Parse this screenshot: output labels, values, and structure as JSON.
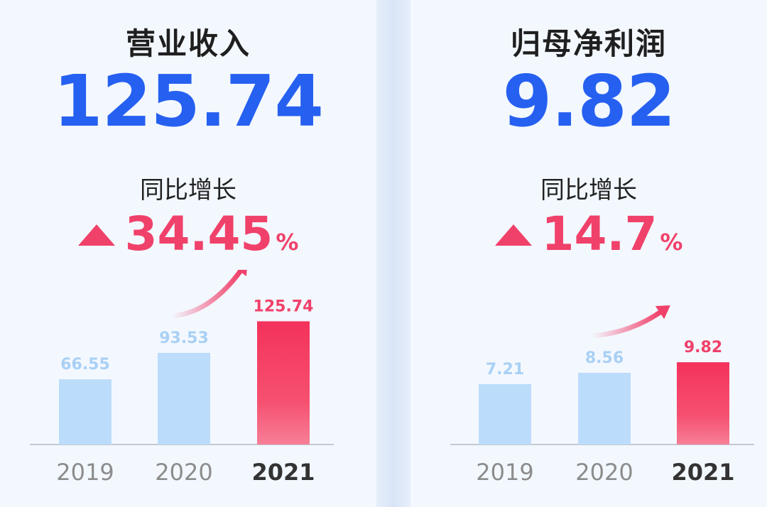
{
  "panels": [
    {
      "title": "营业收入",
      "value": "125.74",
      "yoy_label": "同比增长",
      "yoy_value": "34.45",
      "yoy_unit": "%"
    },
    {
      "title": "归母净利润",
      "value": "9.82",
      "yoy_label": "同比增长",
      "yoy_value": "14.7",
      "yoy_unit": "%"
    }
  ],
  "colors": {
    "accent_blue": "#2660f0",
    "accent_red": "#f0416a",
    "bar_light": "#bcdcfb",
    "label_light": "#a9d0f5"
  },
  "chart_data": [
    {
      "type": "bar",
      "categories": [
        "2019",
        "2020",
        "2021"
      ],
      "values": [
        66.55,
        93.53,
        125.74
      ],
      "value_labels": [
        "66.55",
        "93.53",
        "125.74"
      ],
      "highlight_index": 2
    },
    {
      "type": "bar",
      "categories": [
        "2019",
        "2020",
        "2021"
      ],
      "values": [
        7.21,
        8.56,
        9.82
      ],
      "value_labels": [
        "7.21",
        "8.56",
        "9.82"
      ],
      "highlight_index": 2
    }
  ]
}
